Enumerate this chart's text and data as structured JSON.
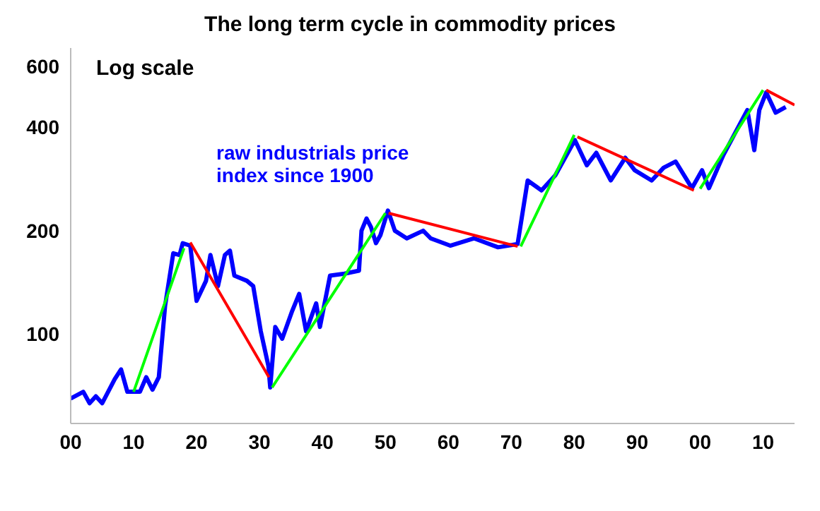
{
  "chart_data": {
    "type": "line",
    "title": "The long term cycle in commodity prices",
    "annotations": [
      "Log scale",
      "raw industrials price index since 1900"
    ],
    "log": "y",
    "marker": "none",
    "line_style": "solid",
    "xlim": [
      1900,
      2015
    ],
    "xticks": [
      {
        "value": 1900,
        "label": "00"
      },
      {
        "value": 1910,
        "label": "10"
      },
      {
        "value": 1920,
        "label": "20"
      },
      {
        "value": 1930,
        "label": "30"
      },
      {
        "value": 1940,
        "label": "40"
      },
      {
        "value": 1950,
        "label": "50"
      },
      {
        "value": 1960,
        "label": "60"
      },
      {
        "value": 1970,
        "label": "70"
      },
      {
        "value": 1980,
        "label": "80"
      },
      {
        "value": 1990,
        "label": "90"
      },
      {
        "value": 2000,
        "label": "00"
      },
      {
        "value": 2010,
        "label": "10"
      }
    ],
    "ylim": [
      55,
      680
    ],
    "yticks": [
      100,
      200,
      400,
      600
    ],
    "series": [
      {
        "color": "#0000ff",
        "x": [
          1900,
          1902,
          1903,
          1904,
          1905,
          1907,
          1908,
          1909,
          1911,
          1912,
          1913,
          1914,
          1915,
          1916.3,
          1917.3,
          1917.8,
          1919,
          1920,
          1921.5,
          1922.2,
          1923.4,
          1924.5,
          1925.3,
          1926,
          1928,
          1929,
          1930.2,
          1931.4,
          1931.7,
          1932.5,
          1933.6,
          1935.2,
          1936.3,
          1937.4,
          1939,
          1939.6,
          1941.2,
          1943.5,
          1945.8,
          1946.2,
          1947,
          1947.7,
          1948.5,
          1949.2,
          1950.4,
          1951.5,
          1953.4,
          1956,
          1957.2,
          1960.3,
          1964.1,
          1967.9,
          1971,
          1972.6,
          1974.8,
          1977,
          1980.1,
          1982,
          1983.5,
          1985.8,
          1988.1,
          1989.6,
          1992.3,
          1994.2,
          1996.1,
          1998.7,
          2000.3,
          2001.4,
          2003.7,
          2007.5,
          2008.6,
          2009.4,
          2010.5,
          2012,
          2013.6
        ],
        "values": [
          65,
          68,
          63,
          66,
          63,
          74,
          79,
          68,
          68,
          75,
          69,
          75,
          121,
          172,
          170,
          184,
          181,
          125,
          143,
          170,
          138,
          170,
          175,
          148,
          143,
          138,
          102,
          81,
          70,
          105,
          97,
          117,
          131,
          102,
          123,
          105,
          148,
          150,
          153,
          200,
          217,
          205,
          184,
          194,
          229,
          200,
          190,
          200,
          190,
          181,
          190,
          179,
          183,
          280,
          262,
          290,
          367,
          310,
          337,
          280,
          326,
          300,
          280,
          305,
          318,
          266,
          300,
          266,
          332,
          449,
          343,
          449,
          505,
          441,
          458
        ]
      },
      {
        "type": "line",
        "color": "#00ff00",
        "x": [
          1910,
          1918,
          1918.01,
          1932,
          1950,
          1950.01,
          1971.5,
          1980,
          1980.01,
          2000,
          2010
        ],
        "values": [
          68,
          178,
          null,
          70,
          225,
          null,
          180,
          380,
          null,
          265,
          513
        ]
      },
      {
        "type": "line",
        "color": "#ff0000",
        "x": [
          1919,
          1931.5,
          1931.51,
          1950.5,
          1971,
          1971.01,
          1980.5,
          1999,
          1999.01,
          2010.5,
          2015
        ],
        "values": [
          185,
          75,
          null,
          225,
          180,
          null,
          375,
          262,
          null,
          513,
          464
        ]
      }
    ]
  }
}
